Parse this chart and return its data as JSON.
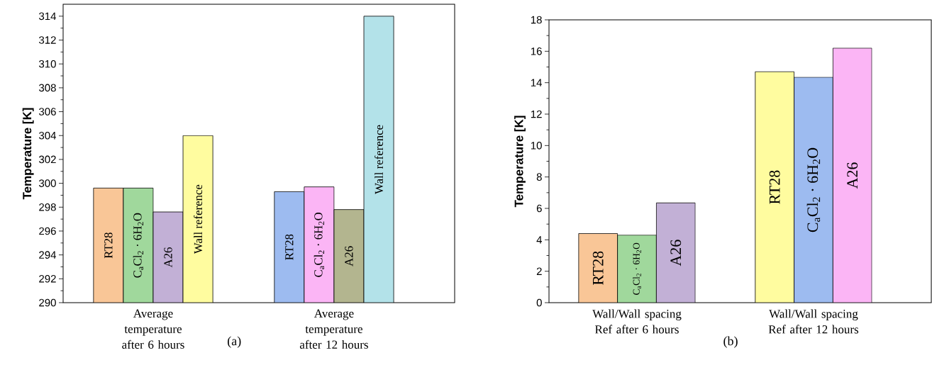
{
  "chart_data": [
    {
      "type": "bar",
      "ylabel": "Temperature [K]",
      "categories": [
        "Average  temperature after 6 hours",
        "Average  temperature after 12 hours"
      ],
      "series": [
        {
          "name": "RT28",
          "colors": [
            "#f9c697",
            "#9dbbf0"
          ],
          "values": [
            299.6,
            299.3
          ]
        },
        {
          "name": "C$_{a}$Cl$_{2}$ · 6H$_{2}$O",
          "colors": [
            "#a0d89c",
            "#fbb5f5"
          ],
          "values": [
            299.6,
            299.7
          ]
        },
        {
          "name": "A26",
          "colors": [
            "#c2b0d6",
            "#b3b58f"
          ],
          "values": [
            297.6,
            297.8
          ]
        },
        {
          "name": "Wall reference",
          "colors": [
            "#fffc9f",
            "#b3e2e9"
          ],
          "values": [
            304.0,
            314.0
          ]
        }
      ],
      "ylim": [
        290,
        315
      ],
      "yticks": [
        290,
        292,
        294,
        296,
        298,
        300,
        302,
        304,
        306,
        308,
        310,
        312,
        314
      ],
      "annotations": [
        "(a)"
      ]
    },
    {
      "type": "bar",
      "ylabel": "Temperature [K]",
      "categories": [
        "Wall/Wall spacing Ref after 6 hours",
        "Wall/Wall spacing Ref after 12 hours"
      ],
      "series": [
        {
          "name": "RT28",
          "colors": [
            "#f9c697",
            "#fffc9f"
          ],
          "values": [
            4.4,
            14.7
          ]
        },
        {
          "name": "C$_{a}$Cl$_{2}$ · 6H$_{2}$O",
          "colors": [
            "#a0d89c",
            "#9dbbf0"
          ],
          "values": [
            4.3,
            14.35
          ]
        },
        {
          "name": "A26",
          "colors": [
            "#c2b0d6",
            "#fbb5f5"
          ],
          "values": [
            6.35,
            16.2
          ]
        }
      ],
      "ylim": [
        0,
        18
      ],
      "yticks": [
        0,
        2,
        4,
        6,
        8,
        10,
        12,
        14,
        16,
        18
      ],
      "annotations": [
        "(b)"
      ]
    }
  ]
}
